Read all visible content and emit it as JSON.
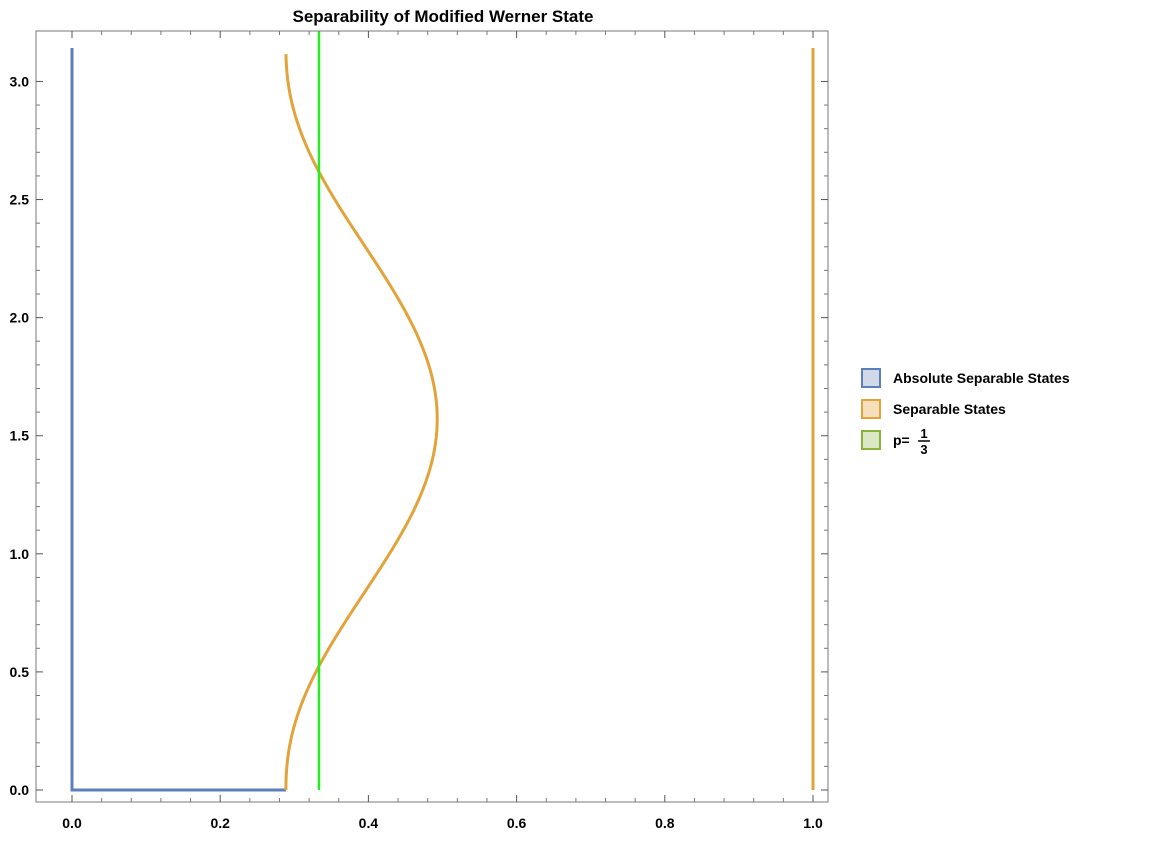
{
  "chart_data": {
    "type": "area",
    "title": "Separability of Modified Werner State",
    "xlabel": "",
    "ylabel": "",
    "xlim": [
      0,
      1
    ],
    "ylim": [
      0,
      3.1416
    ],
    "x_ticks": [
      "0.0",
      "0.2",
      "0.4",
      "0.6",
      "0.8",
      "1.0"
    ],
    "x_tick_values": [
      0,
      0.2,
      0.4,
      0.6,
      0.8,
      1.0
    ],
    "y_ticks": [
      "0.0",
      "0.5",
      "1.0",
      "1.5",
      "2.0",
      "2.5",
      "3.0"
    ],
    "y_tick_values": [
      0,
      0.5,
      1.0,
      1.5,
      2.0,
      2.5,
      3.0
    ],
    "grid": false,
    "legend_position": "right",
    "series": [
      {
        "name": "Absolute Separable States",
        "color": "#5b7fb8",
        "fill": "#d0d9e8",
        "region": "x from 0 to boundary curve",
        "boundary_curve": [
          {
            "y": 0.0,
            "x": 0.2887
          },
          {
            "y": 0.2,
            "x": 0.291
          },
          {
            "y": 0.4,
            "x": 0.2979
          },
          {
            "y": 0.6,
            "x": 0.3165
          },
          {
            "y": 0.8,
            "x": 0.3424
          },
          {
            "y": 1.0,
            "x": 0.3771
          },
          {
            "y": 1.2,
            "x": 0.4154
          },
          {
            "y": 1.4,
            "x": 0.4531
          },
          {
            "y": 1.5708,
            "x": 0.4929
          },
          {
            "y": 1.74,
            "x": 0.4531
          },
          {
            "y": 1.94,
            "x": 0.4154
          },
          {
            "y": 2.14,
            "x": 0.3771
          },
          {
            "y": 2.34,
            "x": 0.3424
          },
          {
            "y": 2.54,
            "x": 0.3165
          },
          {
            "y": 2.74,
            "x": 0.2979
          },
          {
            "y": 2.94,
            "x": 0.291
          },
          {
            "y": 3.1416,
            "x": 0.2887
          }
        ]
      },
      {
        "name": "Separable States",
        "color": "#e2a33a",
        "fill": "#f5dfbd",
        "region": "x from boundary curve to 1",
        "x_max": 1.0
      },
      {
        "name": "p=1/3",
        "label_main": "p=",
        "label_num": "1",
        "label_den": "3",
        "color": "#22ee22",
        "legend_swatch_stroke": "#8bb23a",
        "legend_swatch_fill": "#dbe8c5",
        "x": 0.3333
      }
    ]
  }
}
